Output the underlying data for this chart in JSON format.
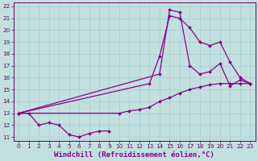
{
  "xlabel": "Windchill (Refroidissement éolien,°C)",
  "bg_color": "#c2e0e0",
  "line_color": "#880088",
  "xlim": [
    -0.5,
    23.5
  ],
  "ylim": [
    10.7,
    22.3
  ],
  "xticks": [
    0,
    1,
    2,
    3,
    4,
    5,
    6,
    7,
    8,
    9,
    10,
    11,
    12,
    13,
    14,
    15,
    16,
    17,
    18,
    19,
    20,
    21,
    22,
    23
  ],
  "yticks": [
    11,
    12,
    13,
    14,
    15,
    16,
    17,
    18,
    19,
    20,
    21,
    22
  ],
  "line1_x": [
    0,
    1,
    2,
    3,
    4,
    5,
    6,
    7,
    8,
    9
  ],
  "line1_y": [
    13,
    13,
    12,
    12.2,
    12,
    11.2,
    11,
    11.3,
    11.5,
    11.5
  ],
  "line2_x": [
    0,
    10,
    11,
    12,
    13,
    14,
    15,
    16,
    17,
    18,
    19,
    20,
    21,
    22,
    23
  ],
  "line2_y": [
    13,
    13,
    13.2,
    13.3,
    13.5,
    14.0,
    14.3,
    14.7,
    15.0,
    15.2,
    15.4,
    15.5,
    15.5,
    15.5,
    15.5
  ],
  "line3_x": [
    0,
    13,
    14,
    15,
    16,
    17,
    18,
    19,
    20,
    21,
    22,
    23
  ],
  "line3_y": [
    13,
    15.5,
    17.8,
    21.2,
    21.0,
    20.2,
    19.0,
    18.7,
    19.0,
    17.3,
    16.0,
    15.5
  ],
  "line4_x": [
    0,
    14,
    15,
    16,
    17,
    18,
    19,
    20,
    21,
    22,
    23
  ],
  "line4_y": [
    13,
    16.3,
    21.7,
    21.5,
    17.0,
    16.3,
    16.5,
    17.2,
    15.3,
    15.8,
    15.5
  ],
  "marker": "D",
  "markersize": 2.0,
  "linewidth": 0.9,
  "xlabel_fontsize": 6.5,
  "tick_fontsize": 5.2,
  "grid_color": "#a8cccc",
  "tick_color": "#660066",
  "spine_color": "#660066"
}
